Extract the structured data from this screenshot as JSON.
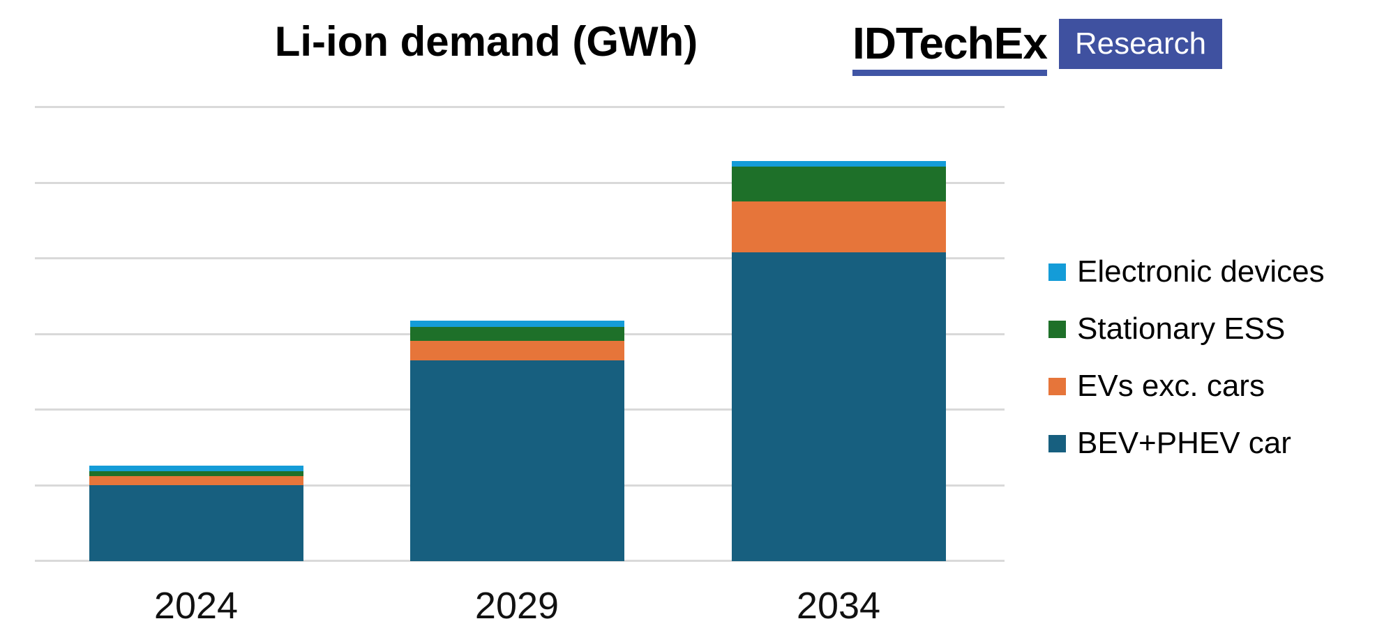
{
  "logo": {
    "brand": "IDTechEx",
    "suffix": "Research",
    "brand_color": "#000000",
    "underline_color": "#4055A5",
    "box_color": "#3F51A0",
    "suffix_text_color": "#FFFFFF"
  },
  "chart_data": {
    "type": "bar",
    "subtype": "stacked-vertical",
    "title": "Li-ion demand (GWh)",
    "unit_label": "GWh",
    "categories": [
      "2024",
      "2029",
      "2034"
    ],
    "stack_order": "bottom-to-top as listed in series",
    "series": [
      {
        "name": "BEV+PHEV car",
        "color": "#175F7F",
        "values": [
          1.0,
          2.65,
          4.08
        ]
      },
      {
        "name": "EVs exc. cars",
        "color": "#E6753A",
        "values": [
          0.12,
          0.26,
          0.67
        ]
      },
      {
        "name": "Stationary ESS",
        "color": "#1E7029",
        "values": [
          0.06,
          0.18,
          0.46
        ]
      },
      {
        "name": "Electronic devices",
        "color": "#149CD8",
        "values": [
          0.07,
          0.08,
          0.07
        ]
      }
    ],
    "totals": [
      1.25,
      3.17,
      5.28
    ],
    "xlabel": "",
    "ylabel": "",
    "y_axis": {
      "tick_labels_visible": false,
      "range": [
        0,
        6
      ],
      "gridline_count": 7,
      "value_note": "y-axis shows no numeric labels; series values are expressed in gridline intervals estimated from bar heights"
    },
    "legend": {
      "position": "right",
      "order_top_to_bottom": [
        "Electronic devices",
        "Stationary ESS",
        "EVs exc. cars",
        "BEV+PHEV car"
      ]
    },
    "grid_color": "#D9D9D9",
    "axis_line_color": "#D9D9D9",
    "background_color": "#FFFFFF"
  }
}
